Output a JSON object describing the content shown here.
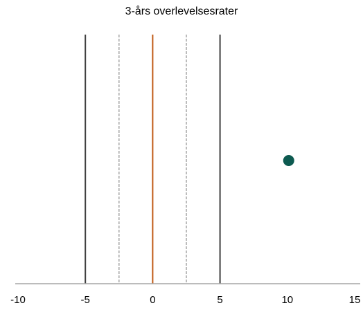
{
  "chart_data": {
    "type": "scatter",
    "title": "3-års overlevelsesrater",
    "xlabel": "",
    "ylabel": "",
    "xlim": [
      -10,
      15
    ],
    "x_ticks": [
      -10,
      -5,
      0,
      5,
      10,
      15
    ],
    "grid": false,
    "points": [
      {
        "x": 10.1,
        "color": "#0d5a50"
      }
    ],
    "reference_lines": [
      {
        "x": -5,
        "style": "solid",
        "color": "#3f3f3f"
      },
      {
        "x": -2.5,
        "style": "dashed",
        "color": "#a6a6a6"
      },
      {
        "x": 0,
        "style": "solid",
        "color": "#c05a16"
      },
      {
        "x": 2.5,
        "style": "dashed",
        "color": "#a6a6a6"
      },
      {
        "x": 5,
        "style": "solid",
        "color": "#3f3f3f"
      }
    ],
    "axis_color": "#a6a6a6"
  }
}
